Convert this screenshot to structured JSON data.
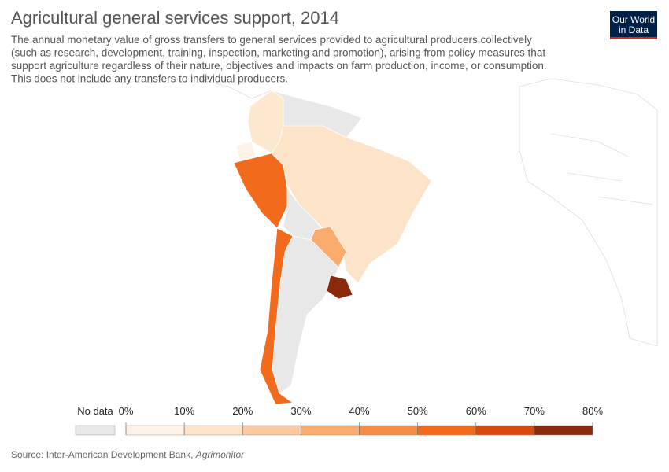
{
  "header": {
    "title": "Agricultural general services support, 2014",
    "subtitle_lines": [
      "The annual monetary value of gross transfers to general services provided to agricultural producers collectively",
      "(such as research, development, training, inspection, marketing and promotion), arising from policy measures that",
      "support agriculture regardless of their nature, objectives and impacts on farm production, income, or consumption.",
      "This does not include any transfers to individual producers."
    ],
    "logo_lines": [
      "Our World",
      "in Data"
    ]
  },
  "legend": {
    "no_data_label": "No data",
    "ticks": [
      {
        "value": 0,
        "label": "0%"
      },
      {
        "value": 10,
        "label": "10%"
      },
      {
        "value": 20,
        "label": "20%"
      },
      {
        "value": 30,
        "label": "30%"
      },
      {
        "value": 40,
        "label": "40%"
      },
      {
        "value": 50,
        "label": "50%"
      },
      {
        "value": 60,
        "label": "60%"
      },
      {
        "value": 70,
        "label": "70%"
      },
      {
        "value": 80,
        "label": "80%"
      }
    ],
    "colors": [
      "#fef3e6",
      "#fde3c8",
      "#fdcaa0",
      "#fbab6c",
      "#f88c44",
      "#f26b1d",
      "#d84a0b",
      "#8b2a0a"
    ],
    "no_data_color": "#e8e8e8"
  },
  "footer": {
    "source": "Source: Inter-American Development Bank,",
    "source_italic": "Agrimonitor"
  }
}
